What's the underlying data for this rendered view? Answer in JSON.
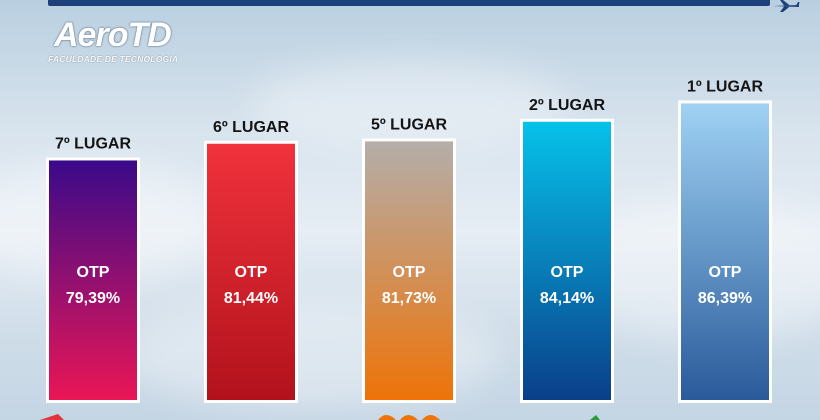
{
  "logo": {
    "name": "AeroTD",
    "subtitle": "FACULDADE DE TECNOLOGIA"
  },
  "chart_data": {
    "type": "bar",
    "title": "",
    "xlabel": "",
    "ylabel": "",
    "ylim": [
      50,
      90
    ],
    "grid": false,
    "categories": [
      "7º LUGAR",
      "6º LUGAR",
      "5º LUGAR",
      "2º LUGAR",
      "1º LUGAR"
    ],
    "metric_label": "OTP",
    "values": [
      79.39,
      81.44,
      81.73,
      84.14,
      86.39
    ],
    "value_labels": [
      "79,39%",
      "81,44%",
      "81,73%",
      "84,14%",
      "86,39%"
    ],
    "colors": [
      [
        "#3a0a8a",
        "#ea1656"
      ],
      [
        "#f0323c",
        "#b2121c"
      ],
      [
        "#b4aeaa",
        "#ee7308"
      ],
      [
        "#06c2ea",
        "#0a3f8a"
      ],
      [
        "#9fd2f4",
        "#2a5a9a"
      ]
    ]
  }
}
